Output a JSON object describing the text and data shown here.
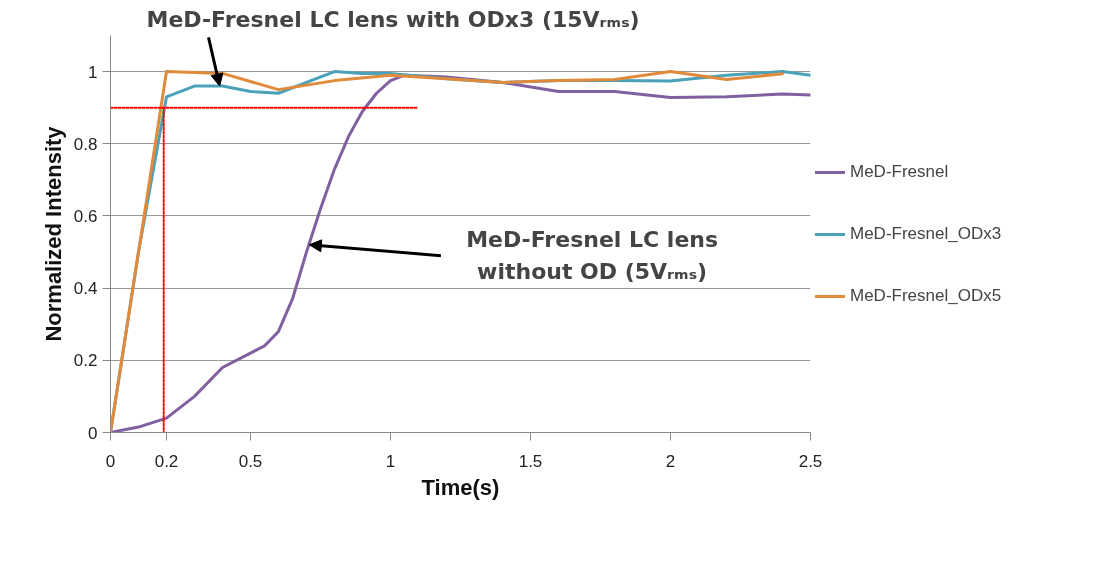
{
  "chart_data": {
    "type": "line",
    "xlabel": "Time(s)",
    "ylabel": "Normalized Intensity",
    "xlim": [
      0,
      2.5
    ],
    "xticks": [
      0,
      {
        "value": 0.2,
        "label": "0.2"
      },
      0.5,
      1,
      1.5,
      2,
      2.5
    ],
    "ylim": [
      0,
      1.1
    ],
    "yticks": [
      0,
      0.2,
      0.4,
      0.6,
      0.8,
      1
    ],
    "grid": "y",
    "legend": "right",
    "marker": "none",
    "line_style": "solid",
    "series": [
      {
        "name": "MeD-Fresnel",
        "color": "#7f61a0",
        "x": [
          0,
          0.1,
          0.2,
          0.3,
          0.4,
          0.5,
          0.55,
          0.6,
          0.65,
          0.7,
          0.75,
          0.8,
          0.85,
          0.9,
          0.95,
          1.0,
          1.05,
          1.2,
          1.4,
          1.6,
          1.8,
          2.0,
          2.2,
          2.4,
          2.5
        ],
        "values": [
          0,
          0.015,
          0.04,
          0.1,
          0.18,
          0.22,
          0.24,
          0.28,
          0.37,
          0.5,
          0.62,
          0.73,
          0.82,
          0.89,
          0.94,
          0.975,
          0.99,
          0.985,
          0.97,
          0.945,
          0.945,
          0.928,
          0.93,
          0.938,
          0.935
        ]
      },
      {
        "name": "MeD-Fresnel_ODx3",
        "color": "#4aa2b8",
        "x": [
          0,
          0.1,
          0.2,
          0.3,
          0.4,
          0.5,
          0.6,
          0.7,
          0.8,
          0.9,
          1.0,
          1.2,
          1.4,
          1.6,
          1.8,
          2.0,
          2.2,
          2.4,
          2.5
        ],
        "values": [
          0,
          0.5,
          0.93,
          0.96,
          0.96,
          0.945,
          0.94,
          0.97,
          1.0,
          0.995,
          0.995,
          0.98,
          0.97,
          0.975,
          0.975,
          0.974,
          0.99,
          1.0,
          0.99
        ]
      },
      {
        "name": "MeD-Fresnel_ODx5",
        "color": "#e08a3c",
        "x": [
          0,
          0.2,
          0.4,
          0.6,
          0.8,
          1.0,
          1.2,
          1.4,
          1.6,
          1.8,
          2.0,
          2.2,
          2.4
        ],
        "values": [
          0,
          1.0,
          0.995,
          0.95,
          0.975,
          0.99,
          0.98,
          0.97,
          0.975,
          0.978,
          1.0,
          0.978,
          0.994
        ]
      },
      {
        "color": "#ff0000",
        "line_style": "dotted",
        "x": [
          0,
          1.1
        ],
        "values": [
          0.9,
          0.9
        ]
      },
      {
        "color": "#ff0000",
        "line_style": "dotted",
        "x": [
          0.19,
          0.19
        ],
        "values": [
          0.9,
          0
        ]
      }
    ],
    "annotations": [
      {
        "text": "MeD-Fresnel LC lens with ODx3 (15Vᵣₘₛ)",
        "x": 0.39,
        "y": 0.96
      },
      {
        "text": "MeD-Fresnel LC lens\nwithout OD (5Vᵣₘₛ)",
        "x": 0.71,
        "y": 0.52
      }
    ]
  }
}
